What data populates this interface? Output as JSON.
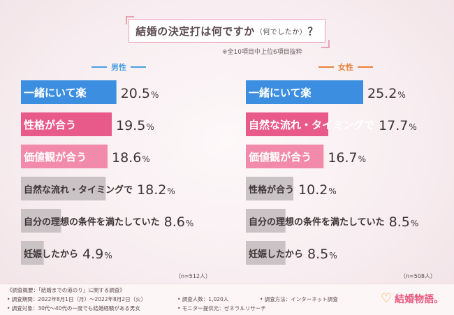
{
  "title": {
    "main_before": "結婚の決定打は何ですか",
    "small": "（何でしたか）",
    "main_after": "？"
  },
  "note": "※全10項目中上位6項目抜粋",
  "colors": {
    "blue": "#3b8ee0",
    "pink_strong": "#e85a8a",
    "pink_light": "#f28bab",
    "gray": "#c9c3c5",
    "male_head": "#4a9fe0",
    "female_head": "#e8823a"
  },
  "chart_data": [
    {
      "type": "bar",
      "title": "男性",
      "unit": "%",
      "xlim": [
        0,
        30
      ],
      "sample": "（n=512人）",
      "categories": [
        "一緒にいて楽",
        "性格が合う",
        "価値観が合う",
        "自然な流れ・タイミングで",
        "自分の理想の条件を満たしていた",
        "妊娠したから"
      ],
      "values": [
        20.5,
        19.5,
        18.6,
        18.2,
        8.6,
        4.9
      ],
      "value_labels": [
        "20.5",
        "19.5",
        "18.6",
        "18.2",
        "8.6",
        "4.9"
      ],
      "bar_colors": [
        "blue",
        "pink_strong",
        "pink_light",
        "gray",
        "gray",
        "gray"
      ]
    },
    {
      "type": "bar",
      "title": "女性",
      "unit": "%",
      "xlim": [
        0,
        30
      ],
      "sample": "（n=508人）",
      "categories": [
        "一緒にいて楽",
        "自然な流れ・タイミングで",
        "価値観が合う",
        "性格が合う",
        "自分の理想の条件を満たしていた",
        "妊娠したから"
      ],
      "values": [
        25.2,
        17.7,
        16.7,
        10.2,
        8.5,
        8.5
      ],
      "value_labels": [
        "25.2",
        "17.7",
        "16.7",
        "10.2",
        "8.5",
        "8.5"
      ],
      "bar_colors": [
        "blue",
        "pink_strong",
        "pink_light",
        "gray",
        "gray",
        "gray"
      ]
    }
  ],
  "footer": {
    "heading": "《調査概要：「結婚までの道のり」に関する調査》",
    "period": "• 調査期間：2022年8月1日（月）〜2022年8月2日（火）",
    "target": "• 調査対象：30代〜40代の一度でも結婚経験がある男女",
    "count": "• 調査人数：1,020人",
    "provider": "• モニター提供元：ゼネラルリサーチ",
    "method": "• 調査方法：インターネット調査"
  },
  "logo": {
    "text": "結婚物語。"
  }
}
